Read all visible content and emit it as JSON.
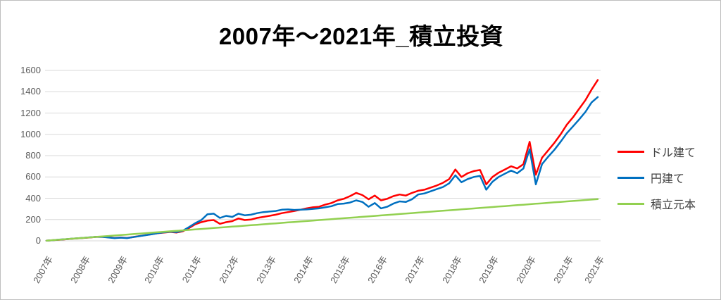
{
  "chart_data": {
    "type": "line",
    "title": "2007年～2021年_積立投資",
    "x_tick_labels": [
      "2007年",
      "2008年",
      "2009年",
      "2010年",
      "2011年",
      "2012年",
      "2013年",
      "2014年",
      "2015年",
      "2016年",
      "2017年",
      "2018年",
      "2019年",
      "2020年",
      "2021年",
      "2021年"
    ],
    "x_tick_indices": [
      0,
      6,
      12,
      18,
      24,
      30,
      36,
      42,
      48,
      54,
      60,
      66,
      72,
      78,
      84,
      89
    ],
    "x_count": 90,
    "y_ticks": [
      0,
      200,
      400,
      600,
      800,
      1000,
      1200,
      1400,
      1600
    ],
    "ylim": [
      0,
      1600
    ],
    "grid": "horizontal-only",
    "legend_position": "right",
    "series": [
      {
        "name": "ドル建て",
        "color": "#FF0000",
        "values": [
          2,
          6,
          10,
          14,
          19,
          23,
          27,
          32,
          37,
          38,
          33,
          27,
          31,
          27,
          36,
          45,
          54,
          63,
          72,
          78,
          83,
          78,
          90,
          120,
          155,
          175,
          190,
          195,
          160,
          175,
          185,
          210,
          195,
          200,
          215,
          225,
          235,
          245,
          260,
          270,
          280,
          292,
          305,
          315,
          320,
          340,
          355,
          380,
          395,
          420,
          450,
          430,
          390,
          425,
          380,
          395,
          420,
          435,
          425,
          450,
          470,
          480,
          500,
          520,
          545,
          580,
          670,
          600,
          635,
          655,
          665,
          530,
          600,
          640,
          670,
          700,
          680,
          720,
          930,
          620,
          780,
          850,
          920,
          1000,
          1090,
          1160,
          1240,
          1320,
          1420,
          1510
        ]
      },
      {
        "name": "円建て",
        "color": "#0070C0",
        "values": [
          2,
          6,
          11,
          15,
          20,
          24,
          28,
          33,
          37,
          37,
          32,
          26,
          30,
          26,
          35,
          44,
          53,
          62,
          73,
          80,
          86,
          82,
          95,
          128,
          165,
          195,
          250,
          255,
          215,
          235,
          225,
          255,
          240,
          245,
          260,
          270,
          275,
          280,
          292,
          295,
          290,
          293,
          295,
          300,
          305,
          315,
          325,
          345,
          350,
          360,
          380,
          365,
          320,
          355,
          305,
          320,
          350,
          370,
          365,
          390,
          435,
          445,
          465,
          485,
          505,
          540,
          615,
          550,
          580,
          600,
          610,
          480,
          555,
          600,
          630,
          660,
          635,
          680,
          860,
          530,
          720,
          790,
          855,
          930,
          1010,
          1075,
          1140,
          1210,
          1300,
          1350
        ]
      },
      {
        "name": "積立元本",
        "color": "#92D050",
        "values_linear": {
          "start": 2,
          "end": 392
        }
      }
    ]
  },
  "colors": {
    "background": "#FFFFFF",
    "border": "#BFBFBF",
    "gridline": "#D9D9D9",
    "tick_text": "#595959",
    "legend_text": "#404040"
  }
}
